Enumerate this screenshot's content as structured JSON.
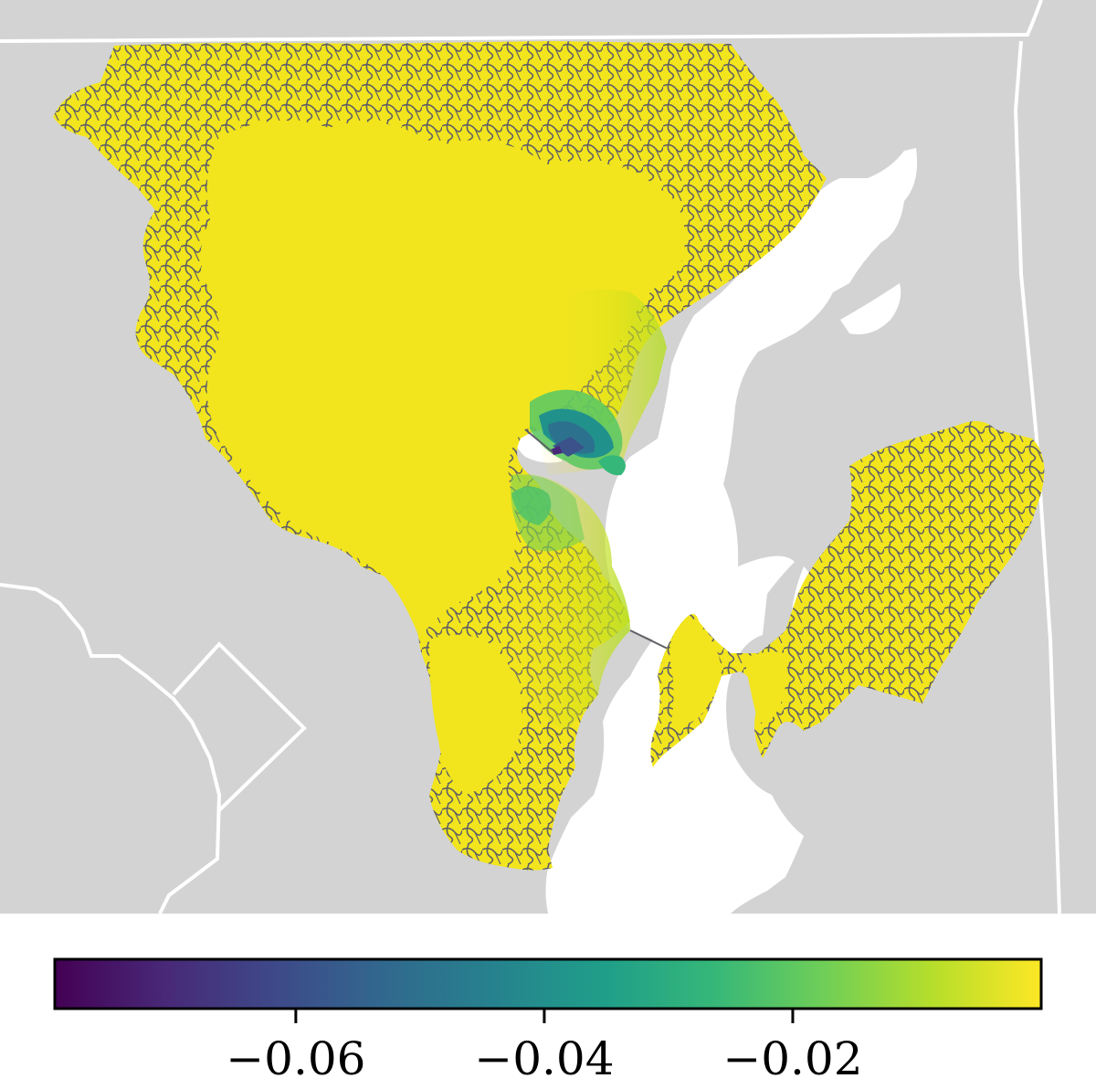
{
  "map": {
    "background_color": "#d3d3d3",
    "water_color": "#ffffff",
    "border_color": "#ffffff",
    "road_color": "#5f5f66",
    "node_color": "#f2e51d"
  },
  "colorbar": {
    "colormap": "viridis",
    "min": -0.0794,
    "max": 0.0,
    "stops": [
      "#440154",
      "#482878",
      "#3e4989",
      "#31688e",
      "#26828e",
      "#1f9e89",
      "#35b779",
      "#6ece58",
      "#b5de2b",
      "#fde725"
    ],
    "ticks": [
      {
        "value": -0.06,
        "label": "−0.06"
      },
      {
        "value": -0.04,
        "label": "−0.04"
      },
      {
        "value": -0.02,
        "label": "−0.02"
      }
    ]
  }
}
